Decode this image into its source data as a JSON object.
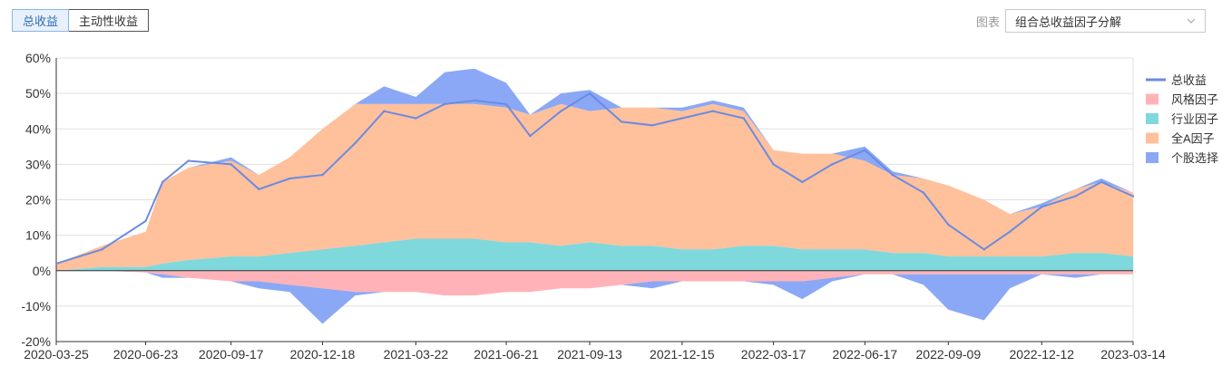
{
  "tabs": [
    {
      "label": "总收益",
      "active": true
    },
    {
      "label": "主动性收益",
      "active": false
    }
  ],
  "chart_selector": {
    "label": "图表",
    "value": "组合总收益因子分解"
  },
  "chart_data": {
    "type": "area",
    "title": "组合总收益因子分解",
    "xlabel": "",
    "ylabel": "",
    "ylim": [
      -20,
      60
    ],
    "yticks": [
      "60%",
      "50%",
      "40%",
      "30%",
      "20%",
      "10%",
      "0%",
      "-10%",
      "-20%"
    ],
    "xtick_labels": [
      "2020-03-25",
      "2020-06-23",
      "2020-09-17",
      "2020-12-18",
      "2021-03-22",
      "2021-06-21",
      "2021-09-13",
      "2021-12-15",
      "2022-03-17",
      "2022-06-17",
      "2022-09-09",
      "2022-12-12",
      "2023-03-14"
    ],
    "x": [
      "2020-03-25",
      "2020-05-10",
      "2020-06-23",
      "2020-07-10",
      "2020-08-05",
      "2020-09-17",
      "2020-10-15",
      "2020-11-15",
      "2020-12-18",
      "2021-01-20",
      "2021-02-18",
      "2021-03-22",
      "2021-04-20",
      "2021-05-20",
      "2021-06-21",
      "2021-07-15",
      "2021-08-15",
      "2021-09-13",
      "2021-10-15",
      "2021-11-15",
      "2021-12-15",
      "2022-01-15",
      "2022-02-15",
      "2022-03-17",
      "2022-04-15",
      "2022-05-15",
      "2022-06-17",
      "2022-07-15",
      "2022-08-15",
      "2022-09-09",
      "2022-10-15",
      "2022-11-10",
      "2022-12-12",
      "2023-01-15",
      "2023-02-10",
      "2023-03-14"
    ],
    "series": [
      {
        "name": "总收益",
        "kind": "line",
        "color": "#6b8be0",
        "values": [
          2,
          6,
          14,
          25,
          31,
          30,
          23,
          26,
          27,
          36,
          45,
          43,
          47,
          48,
          47,
          38,
          45,
          50,
          42,
          41,
          43,
          45,
          43,
          30,
          25,
          30,
          34,
          27,
          22,
          13,
          6,
          11,
          18,
          21,
          25,
          21
        ]
      },
      {
        "name": "风格因子",
        "kind": "area",
        "color": "#ffb3b8",
        "values": [
          0,
          0,
          -0.5,
          -1,
          -2,
          -3,
          -3,
          -4,
          -5,
          -6,
          -6,
          -6,
          -7,
          -7,
          -6,
          -6,
          -5,
          -5,
          -4,
          -3,
          -3,
          -3,
          -3,
          -3,
          -3,
          -2,
          -1,
          -1,
          -1,
          -1,
          -1,
          -1,
          -1,
          -1,
          -1,
          -1
        ]
      },
      {
        "name": "行业因子",
        "kind": "area",
        "color": "#7fd8dc",
        "values": [
          0,
          1,
          1,
          2,
          3,
          4,
          4,
          5,
          6,
          7,
          8,
          9,
          9,
          9,
          8,
          8,
          7,
          8,
          7,
          7,
          6,
          6,
          7,
          7,
          6,
          6,
          6,
          5,
          5,
          4,
          4,
          4,
          4,
          5,
          5,
          4
        ]
      },
      {
        "name": "全A因子",
        "kind": "area",
        "color": "#ffc09c",
        "values": [
          2,
          6,
          10,
          23,
          26,
          27,
          23,
          27,
          34,
          40,
          39,
          38,
          38,
          38,
          38,
          36,
          40,
          37,
          39,
          39,
          39,
          41,
          38,
          27,
          27,
          27,
          25,
          22,
          21,
          20,
          16,
          12,
          14,
          18,
          20,
          18
        ]
      },
      {
        "name": "个股选择",
        "kind": "area",
        "color": "#8aa8f5",
        "values": [
          0,
          0,
          0,
          -1,
          0,
          1,
          -2,
          -2,
          -10,
          -1,
          5,
          2,
          9,
          10,
          7,
          0,
          3,
          6,
          0,
          -2,
          1,
          1,
          1,
          -1,
          -5,
          -1,
          4,
          1,
          -3,
          -10,
          -13,
          -4,
          1,
          -1,
          1,
          0
        ]
      }
    ],
    "grid": true,
    "legend_position": "right"
  }
}
